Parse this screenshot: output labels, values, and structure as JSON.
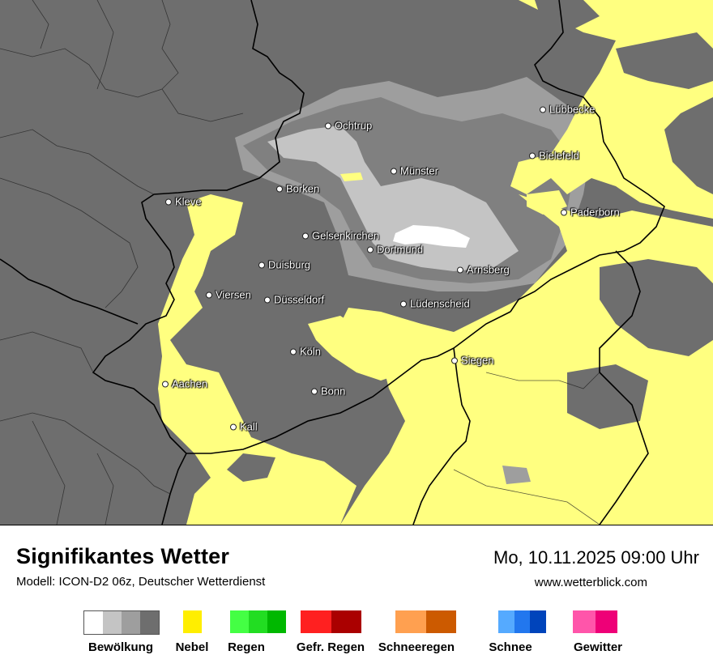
{
  "map": {
    "cities": [
      {
        "name": "Lübbecke",
        "id": "luebbecke"
      },
      {
        "name": "Ochtrup",
        "id": "ochtrup"
      },
      {
        "name": "Bielefeld",
        "id": "bielefeld"
      },
      {
        "name": "Münster",
        "id": "muenster"
      },
      {
        "name": "Borken",
        "id": "borken"
      },
      {
        "name": "Kleve",
        "id": "kleve"
      },
      {
        "name": "Paderborn",
        "id": "paderborn"
      },
      {
        "name": "Gelsenkirchen",
        "id": "gelsenkirchen"
      },
      {
        "name": "Dortmund",
        "id": "dortmund"
      },
      {
        "name": "Duisburg",
        "id": "duisburg"
      },
      {
        "name": "Arnsberg",
        "id": "arnsberg"
      },
      {
        "name": "Viersen",
        "id": "viersen"
      },
      {
        "name": "Düsseldorf",
        "id": "duesseldorf"
      },
      {
        "name": "Lüdenscheid",
        "id": "luedenscheid"
      },
      {
        "name": "Köln",
        "id": "koeln"
      },
      {
        "name": "Siegen",
        "id": "siegen"
      },
      {
        "name": "Aachen",
        "id": "aachen"
      },
      {
        "name": "Bonn",
        "id": "bonn"
      },
      {
        "name": "Kall",
        "id": "kall"
      }
    ],
    "colors": {
      "overcast": "#6e6e6e",
      "cloud_dark": "#808080",
      "cloud_mid": "#9e9e9e",
      "cloud_light": "#c4c4c4",
      "clear": "#ffffff",
      "fog": "#ffff80"
    }
  },
  "footer": {
    "title": "Signifikantes Wetter",
    "model": "Modell: ICON-D2 06z, Deutscher Wetterdienst",
    "datetime": "Mo, 10.11.2025 09:00 Uhr",
    "website": "www.wetterblick.com"
  },
  "legend": [
    {
      "label": "Bewölkung",
      "colors": [
        "#ffffff",
        "#c4c4c4",
        "#9e9e9e",
        "#6e6e6e"
      ]
    },
    {
      "label": "Nebel",
      "colors": [
        "#ffee00"
      ]
    },
    {
      "label": "Regen",
      "colors": [
        "#44ff44",
        "#22dd22",
        "#00b800"
      ]
    },
    {
      "label": "Gefr. Regen",
      "colors": [
        "#ff2020",
        "#aa0000"
      ]
    },
    {
      "label": "Schneeregen",
      "colors": [
        "#ffa050",
        "#cc5a00"
      ]
    },
    {
      "label": "Schnee",
      "colors": [
        "#55aaff",
        "#2277ee",
        "#0044bb"
      ]
    },
    {
      "label": "Gewitter",
      "colors": [
        "#ff55aa",
        "#ee0077"
      ]
    }
  ]
}
